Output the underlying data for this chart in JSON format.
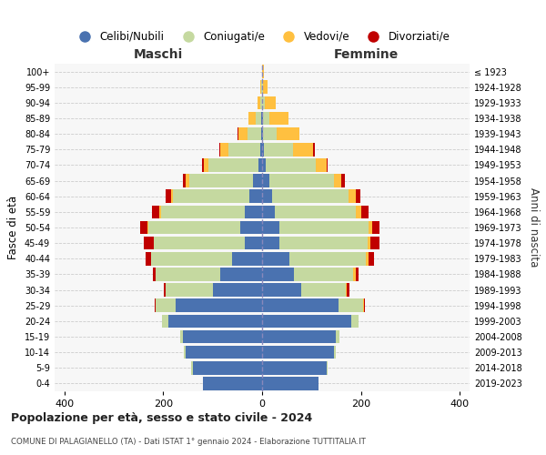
{
  "age_groups": [
    "0-4",
    "5-9",
    "10-14",
    "15-19",
    "20-24",
    "25-29",
    "30-34",
    "35-39",
    "40-44",
    "45-49",
    "50-54",
    "55-59",
    "60-64",
    "65-69",
    "70-74",
    "75-79",
    "80-84",
    "85-89",
    "90-94",
    "95-99",
    "100+"
  ],
  "birth_years": [
    "2019-2023",
    "2014-2018",
    "2009-2013",
    "2004-2008",
    "1999-2003",
    "1994-1998",
    "1989-1993",
    "1984-1988",
    "1979-1983",
    "1974-1978",
    "1969-1973",
    "1964-1968",
    "1959-1963",
    "1954-1958",
    "1949-1953",
    "1944-1948",
    "1939-1943",
    "1934-1938",
    "1929-1933",
    "1924-1928",
    "≤ 1923"
  ],
  "males": {
    "celibi": [
      120,
      140,
      155,
      160,
      190,
      175,
      100,
      85,
      60,
      35,
      45,
      35,
      25,
      18,
      8,
      4,
      2,
      1,
      0,
      0,
      0
    ],
    "coniugati": [
      0,
      3,
      3,
      5,
      12,
      40,
      95,
      130,
      165,
      185,
      185,
      170,
      155,
      130,
      100,
      65,
      28,
      12,
      4,
      1,
      0
    ],
    "vedovi": [
      0,
      0,
      0,
      0,
      0,
      0,
      0,
      0,
      0,
      0,
      2,
      3,
      5,
      6,
      10,
      15,
      18,
      14,
      6,
      2,
      0
    ],
    "divorziati": [
      0,
      0,
      0,
      0,
      0,
      2,
      4,
      6,
      10,
      20,
      15,
      14,
      10,
      6,
      4,
      2,
      1,
      0,
      0,
      0,
      0
    ]
  },
  "females": {
    "nubili": [
      115,
      130,
      145,
      150,
      180,
      155,
      80,
      65,
      55,
      35,
      35,
      25,
      20,
      15,
      8,
      4,
      2,
      1,
      0,
      0,
      0
    ],
    "coniugate": [
      0,
      3,
      4,
      6,
      15,
      50,
      90,
      120,
      155,
      178,
      180,
      165,
      155,
      130,
      100,
      58,
      28,
      14,
      5,
      1,
      0
    ],
    "vedove": [
      0,
      0,
      0,
      0,
      0,
      2,
      2,
      4,
      6,
      7,
      7,
      10,
      14,
      16,
      22,
      42,
      45,
      38,
      22,
      10,
      4
    ],
    "divorziate": [
      0,
      0,
      0,
      0,
      0,
      2,
      4,
      6,
      10,
      18,
      15,
      15,
      10,
      6,
      2,
      2,
      1,
      0,
      0,
      0,
      0
    ]
  },
  "colors": {
    "celibi_nubili": "#4a72b0",
    "coniugati": "#c5d9a0",
    "vedovi": "#ffc040",
    "divorziati": "#c00000"
  },
  "xlim": [
    -420,
    420
  ],
  "xticks": [
    -400,
    -200,
    0,
    200,
    400
  ],
  "xticklabels": [
    "400",
    "200",
    "0",
    "200",
    "400"
  ],
  "title1": "Popolazione per età, sesso e stato civile - 2024",
  "title2": "COMUNE DI PALAGIANELLO (TA) - Dati ISTAT 1° gennaio 2024 - Elaborazione TUTTITALIA.IT",
  "ylabel": "Fasce di età",
  "ylabel_right": "Anni di nascita",
  "label_maschi": "Maschi",
  "label_femmine": "Femmine",
  "legend_labels": [
    "Celibi/Nubili",
    "Coniugati/e",
    "Vedovi/e",
    "Divorziati/e"
  ],
  "bg_color": "#ffffff",
  "plot_bg_color": "#f7f7f7"
}
